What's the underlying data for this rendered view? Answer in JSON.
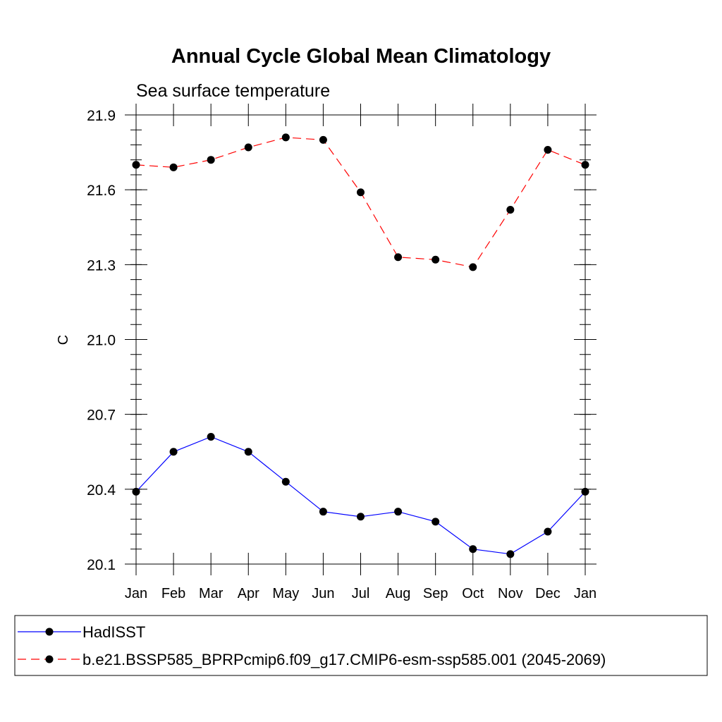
{
  "chart_data": {
    "type": "line",
    "title": "Annual Cycle Global Mean Climatology",
    "subtitle": "Sea surface temperature",
    "xlabel": "",
    "ylabel": "C",
    "categories": [
      "Jan",
      "Feb",
      "Mar",
      "Apr",
      "May",
      "Jun",
      "Jul",
      "Aug",
      "Sep",
      "Oct",
      "Nov",
      "Dec",
      "Jan"
    ],
    "ylim": [
      20.1,
      21.9
    ],
    "yticks": [
      "20.1",
      "20.4",
      "20.7",
      "21.0",
      "21.3",
      "21.6",
      "21.9"
    ],
    "grid": false,
    "legend_position": "bottom",
    "series": [
      {
        "name": "HadISST",
        "color": "#0000ff",
        "line_style": "solid",
        "marker": "filled-circle",
        "values": [
          20.39,
          20.55,
          20.61,
          20.55,
          20.43,
          20.31,
          20.29,
          20.31,
          20.27,
          20.16,
          20.14,
          20.23,
          20.39
        ]
      },
      {
        "name": "b.e21.BSSP585_BPRPcmip6.f09_g17.CMIP6-esm-ssp585.001 (2045-2069)",
        "color": "#ff0000",
        "line_style": "dashed",
        "marker": "filled-circle",
        "values": [
          21.7,
          21.69,
          21.72,
          21.77,
          21.81,
          21.8,
          21.59,
          21.33,
          21.32,
          21.29,
          21.52,
          21.76,
          21.7
        ]
      }
    ]
  }
}
